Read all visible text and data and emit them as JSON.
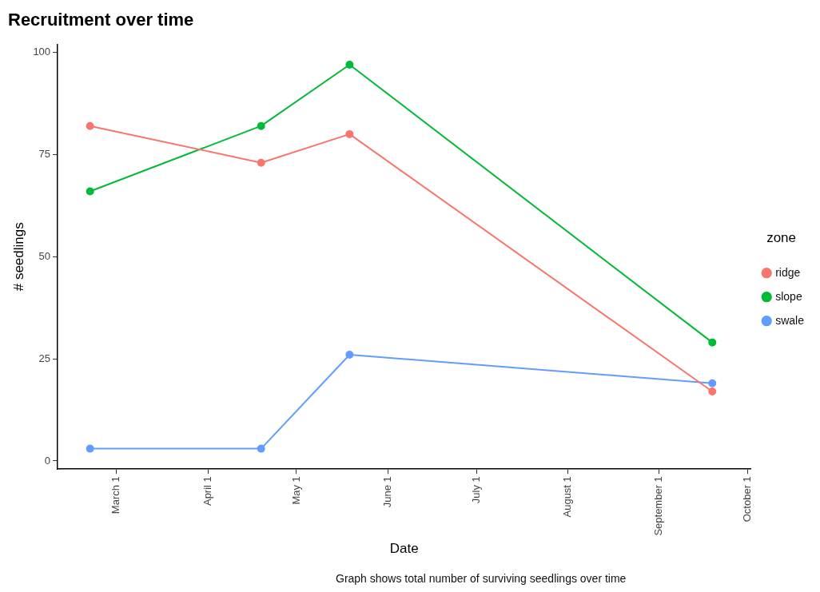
{
  "chart_data": {
    "type": "line",
    "title": "Recruitment over time",
    "xlabel": "Date",
    "ylabel": "# seedlings",
    "legend_title": "zone",
    "x": [
      "--02-20",
      "--04-19",
      "--05-19",
      "--09-19"
    ],
    "series": [
      {
        "name": "ridge",
        "color": "#f8766d",
        "values": [
          82,
          73,
          80,
          17
        ]
      },
      {
        "name": "slope",
        "color": "#00ba38",
        "values": [
          66,
          82,
          97,
          29
        ]
      },
      {
        "name": "swale",
        "color": "#619cff",
        "values": [
          3,
          3,
          26,
          19
        ]
      }
    ],
    "xlim": [
      "--02-09",
      "--10-02"
    ],
    "xticks": [
      {
        "value": "--03-01",
        "label": "March 1"
      },
      {
        "value": "--04-01",
        "label": "April 1"
      },
      {
        "value": "--05-01",
        "label": "May 1"
      },
      {
        "value": "--06-01",
        "label": "June 1"
      },
      {
        "value": "--07-01",
        "label": "July 1"
      },
      {
        "value": "--08-01",
        "label": "August 1"
      },
      {
        "value": "--09-01",
        "label": "September 1"
      },
      {
        "value": "--10-01",
        "label": "October 1"
      }
    ],
    "ylim": [
      -2,
      102
    ],
    "yticks": [
      0,
      25,
      50,
      75,
      100
    ],
    "grid": false,
    "legend": "right",
    "marker": "circle",
    "line_style": "solid",
    "annotations": [
      "Graph shows total number of surviving seedlings over time"
    ]
  }
}
